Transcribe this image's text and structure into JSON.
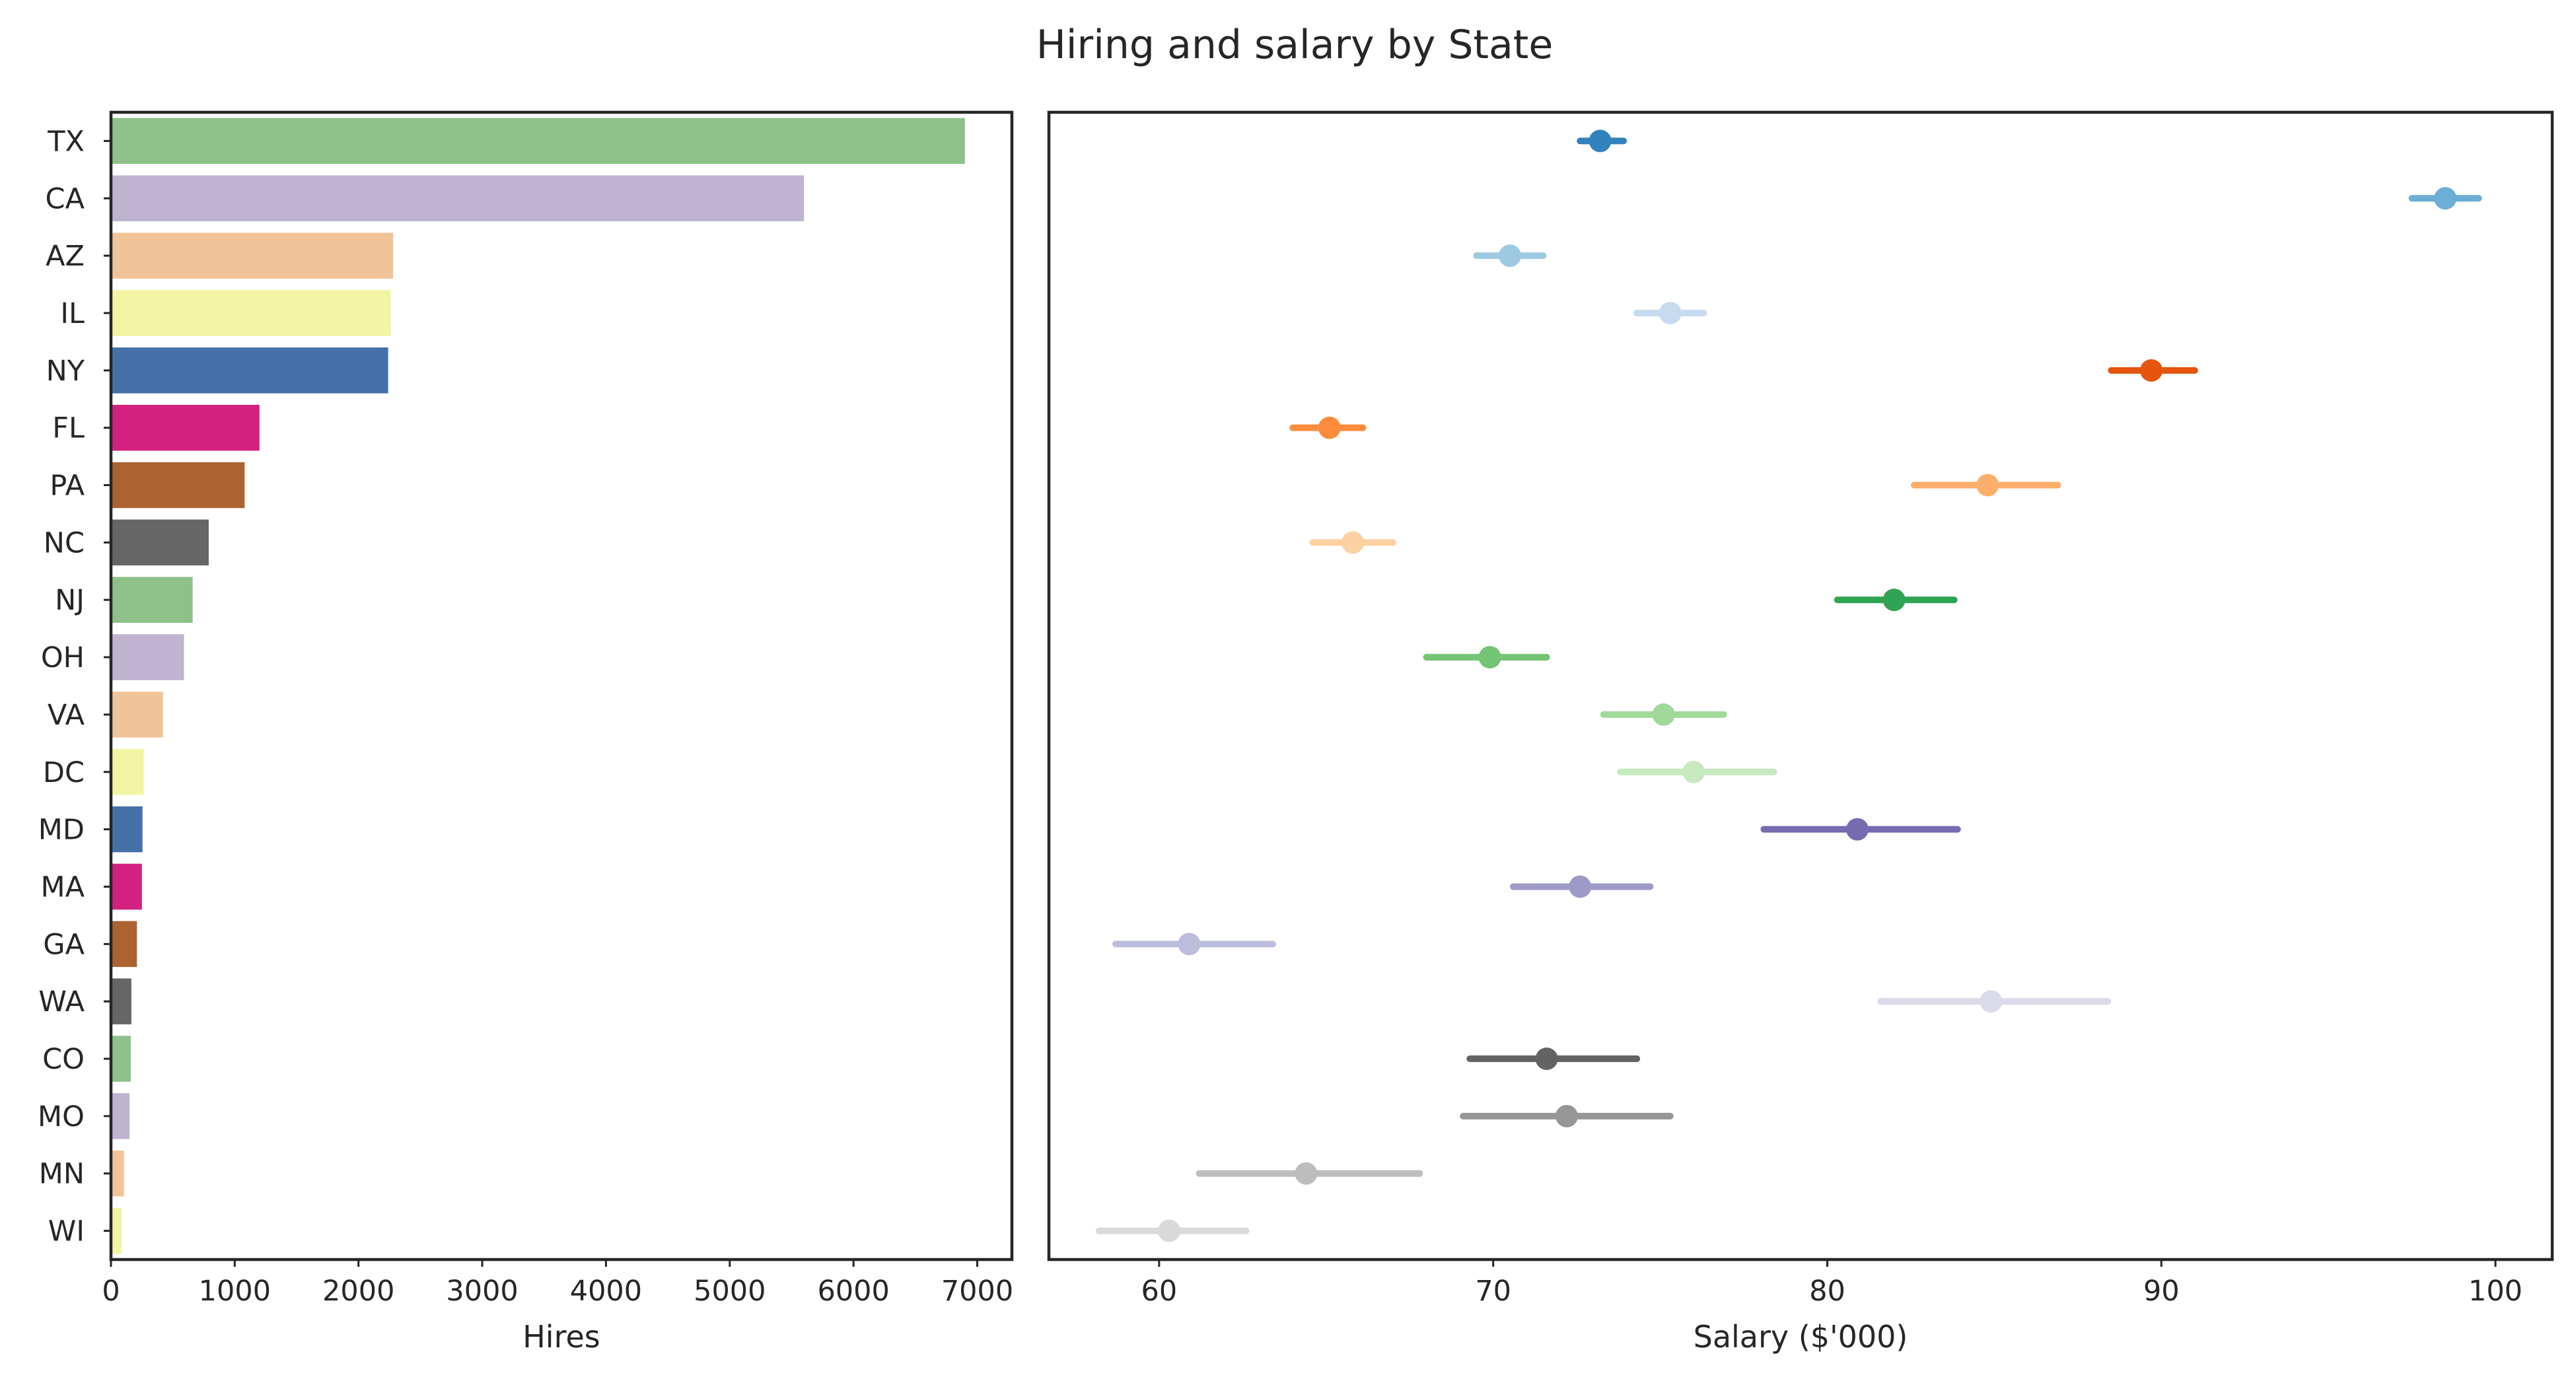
{
  "title": "Hiring and salary by State",
  "chart_data": [
    {
      "type": "bar",
      "orientation": "horizontal",
      "categories": [
        "TX",
        "CA",
        "AZ",
        "IL",
        "NY",
        "FL",
        "PA",
        "NC",
        "NJ",
        "OH",
        "VA",
        "DC",
        "MD",
        "MA",
        "GA",
        "WA",
        "CO",
        "MO",
        "MN",
        "WI"
      ],
      "values": [
        6900,
        5600,
        2280,
        2260,
        2240,
        1200,
        1080,
        790,
        660,
        590,
        420,
        265,
        255,
        250,
        210,
        165,
        160,
        150,
        105,
        85
      ],
      "colors": [
        "#8dc189",
        "#c0b2d1",
        "#f0c498",
        "#f3f4a3",
        "#4671a8",
        "#d3217f",
        "#ac6231",
        "#666666",
        "#8dc189",
        "#c0b2d1",
        "#f0c498",
        "#f3f4a3",
        "#4671a8",
        "#d3217f",
        "#ac6231",
        "#666666",
        "#8dc189",
        "#c0b2d1",
        "#f0c498",
        "#f3f4a3"
      ],
      "xlabel": "Hires",
      "ylabel": "",
      "xlim": [
        0,
        7280
      ],
      "xticks": [
        0,
        1000,
        2000,
        3000,
        4000,
        5000,
        6000,
        7000
      ],
      "grid": false
    },
    {
      "type": "scatter",
      "subtype": "pointplot-errorbar",
      "categories": [
        "TX",
        "CA",
        "AZ",
        "IL",
        "NY",
        "FL",
        "PA",
        "NC",
        "NJ",
        "OH",
        "VA",
        "DC",
        "MD",
        "MA",
        "GA",
        "WA",
        "CO",
        "MO",
        "MN",
        "WI"
      ],
      "points": [
        {
          "mean": 73.2,
          "low": 72.6,
          "high": 73.9,
          "color": "#3182bd"
        },
        {
          "mean": 98.5,
          "low": 97.5,
          "high": 99.5,
          "color": "#6baed6"
        },
        {
          "mean": 70.5,
          "low": 69.5,
          "high": 71.5,
          "color": "#9ecae1"
        },
        {
          "mean": 75.3,
          "low": 74.3,
          "high": 76.3,
          "color": "#c6dbef"
        },
        {
          "mean": 89.7,
          "low": 88.5,
          "high": 91.0,
          "color": "#e6550d"
        },
        {
          "mean": 65.1,
          "low": 64.0,
          "high": 66.1,
          "color": "#fd8d3c"
        },
        {
          "mean": 84.8,
          "low": 82.6,
          "high": 86.9,
          "color": "#fdae6b"
        },
        {
          "mean": 65.8,
          "low": 64.6,
          "high": 67.0,
          "color": "#fdd0a2"
        },
        {
          "mean": 82.0,
          "low": 80.3,
          "high": 83.8,
          "color": "#31a354"
        },
        {
          "mean": 69.9,
          "low": 68.0,
          "high": 71.6,
          "color": "#74c476"
        },
        {
          "mean": 75.1,
          "low": 73.3,
          "high": 76.9,
          "color": "#a1d99b"
        },
        {
          "mean": 76.0,
          "low": 73.8,
          "high": 78.4,
          "color": "#c7e9c0"
        },
        {
          "mean": 80.9,
          "low": 78.1,
          "high": 83.9,
          "color": "#756bb1"
        },
        {
          "mean": 72.6,
          "low": 70.6,
          "high": 74.7,
          "color": "#9e9ac8"
        },
        {
          "mean": 60.9,
          "low": 58.7,
          "high": 63.4,
          "color": "#bcbddc"
        },
        {
          "mean": 84.9,
          "low": 81.6,
          "high": 88.4,
          "color": "#dadaeb"
        },
        {
          "mean": 71.6,
          "low": 69.3,
          "high": 74.3,
          "color": "#636363"
        },
        {
          "mean": 72.2,
          "low": 69.1,
          "high": 75.3,
          "color": "#969696"
        },
        {
          "mean": 64.4,
          "low": 61.2,
          "high": 67.8,
          "color": "#bdbdbd"
        },
        {
          "mean": 60.3,
          "low": 58.2,
          "high": 62.6,
          "color": "#d9d9d9"
        }
      ],
      "xlabel": "Salary ($'000)",
      "ylabel": "",
      "xlim": [
        56.7,
        101.7
      ],
      "xticks": [
        60,
        70,
        80,
        90,
        100
      ],
      "grid": false
    }
  ]
}
